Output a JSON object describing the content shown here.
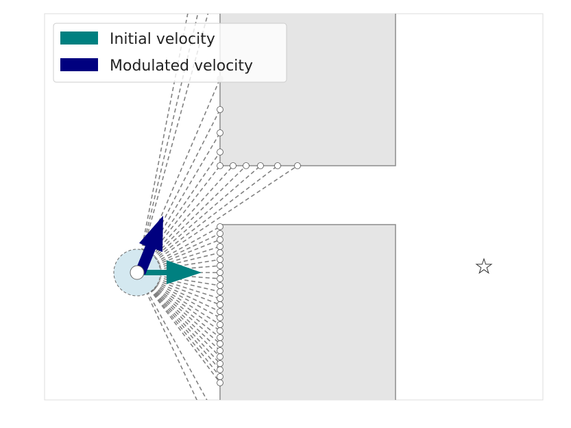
{
  "legend": {
    "initial_label": "Initial velocity",
    "modulated_label": "Modulated velocity"
  },
  "colors": {
    "initial": "#008080",
    "modulated": "#00007f",
    "obstacle_fill": "#e5e5e5",
    "obstacle_edge": "#8c8c8c",
    "rays": "#808080",
    "agent_zone": "#d4e8f0"
  },
  "icons": {
    "goal": "star-icon",
    "agent": "agent-circle"
  }
}
